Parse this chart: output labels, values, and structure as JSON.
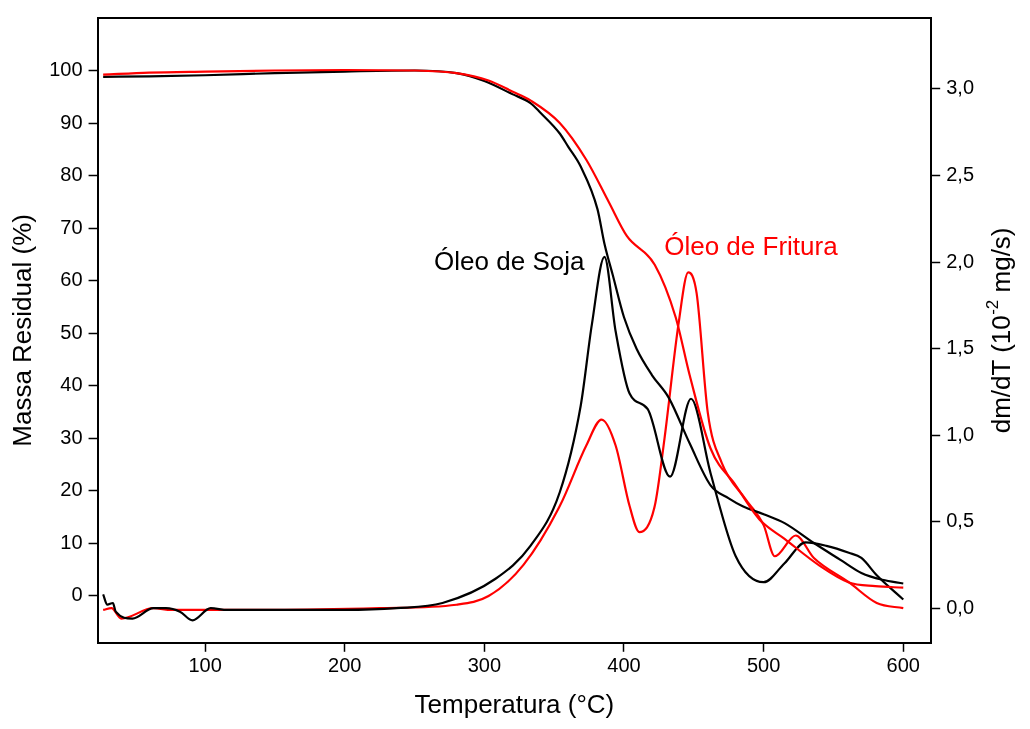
{
  "chart_data": {
    "type": "line",
    "xlabel": "Temperatura (°C)",
    "ylabel": "Massa Residual (%)",
    "y2label": "dm/dT (10$^{-2}$ mg/s)",
    "xlim": [
      23,
      620
    ],
    "xticks": [
      100,
      200,
      300,
      400,
      500,
      600
    ],
    "ylim": [
      -9,
      110
    ],
    "yticks": [
      0,
      10,
      20,
      30,
      40,
      50,
      60,
      70,
      80,
      90,
      100
    ],
    "y2lim": [
      -0.2,
      3.41
    ],
    "y2ticks": [
      {
        "value": 0,
        "label": "0,0"
      },
      {
        "value": 0.5,
        "label": "0,5"
      },
      {
        "value": 1,
        "label": "1,0"
      },
      {
        "value": 1.5,
        "label": "1,5"
      },
      {
        "value": 2,
        "label": "2,0"
      },
      {
        "value": 2.5,
        "label": "2,5"
      },
      {
        "value": 3,
        "label": "3,0"
      }
    ],
    "grid": false,
    "legend": false,
    "marker": "none",
    "line_style": "solid",
    "series": [
      {
        "color": "#000000",
        "x": [
          27,
          60,
          100,
          150,
          200,
          250,
          280,
          300,
          320,
          333,
          340,
          354,
          360,
          369,
          381,
          386,
          392,
          400,
          409,
          420,
          432,
          447,
          462,
          475,
          485,
          500,
          515,
          536,
          555,
          570,
          585,
          600
        ],
        "values": [
          98.8,
          98.9,
          99.1,
          99.5,
          99.8,
          100,
          99.5,
          98,
          95.5,
          93.8,
          92,
          88,
          85.5,
          81.7,
          73.6,
          67,
          61,
          53,
          47,
          42,
          37.7,
          29,
          21,
          18.5,
          17,
          15.5,
          13.8,
          10,
          6.8,
          4.3,
          3,
          2.3
        ]
      },
      {
        "color": "#ff0000",
        "x": [
          27,
          60,
          100,
          150,
          200,
          250,
          280,
          303,
          320,
          333,
          354,
          373,
          389,
          402,
          422,
          437,
          447,
          462,
          480,
          497,
          515,
          540,
          561,
          580,
          600
        ],
        "values": [
          99.2,
          99.6,
          99.8,
          100,
          100.1,
          100,
          99.5,
          98.1,
          96,
          94.3,
          90,
          83,
          75,
          68.5,
          63,
          53,
          42,
          28,
          21,
          14.5,
          10.8,
          5.7,
          2.5,
          1.8,
          1.5
        ]
      },
      {
        "name": "Óleo de Soja",
        "axis": "y2",
        "color": "#000000",
        "x": [
          27,
          30,
          34,
          36,
          48,
          63,
          72,
          82,
          91,
          104,
          116,
          150,
          200,
          237,
          270,
          308,
          333,
          354,
          369,
          377,
          386,
          394,
          404,
          417,
          433,
          448,
          462,
          480,
          500,
          515,
          530,
          545,
          561,
          570,
          581,
          600
        ],
        "values": [
          0.08,
          0.02,
          0.03,
          -0.02,
          -0.06,
          0,
          0,
          -0.02,
          -0.07,
          0,
          -0.01,
          -0.01,
          -0.01,
          0,
          0.03,
          0.17,
          0.36,
          0.67,
          1.17,
          1.64,
          2.03,
          1.6,
          1.24,
          1.15,
          0.76,
          1.21,
          0.78,
          0.3,
          0.15,
          0.26,
          0.38,
          0.36,
          0.32,
          0.29,
          0.19,
          0.05
        ]
      },
      {
        "name": "Óleo de Fritura",
        "axis": "y2",
        "color": "#ff0000",
        "x": [
          27,
          33,
          40,
          63,
          76,
          150,
          225,
          280,
          303,
          328,
          354,
          373,
          384,
          394,
          404,
          411,
          422,
          429,
          439,
          446,
          452,
          460,
          470,
          487,
          500,
          508,
          523,
          536,
          561,
          581,
          600
        ],
        "values": [
          -0.01,
          0,
          -0.06,
          0,
          -0.01,
          -0.01,
          0,
          0.02,
          0.07,
          0.25,
          0.59,
          0.94,
          1.09,
          0.94,
          0.59,
          0.44,
          0.59,
          0.98,
          1.64,
          1.94,
          1.82,
          1.13,
          0.84,
          0.63,
          0.48,
          0.3,
          0.42,
          0.29,
          0.15,
          0.03,
          0
        ]
      }
    ]
  }
}
